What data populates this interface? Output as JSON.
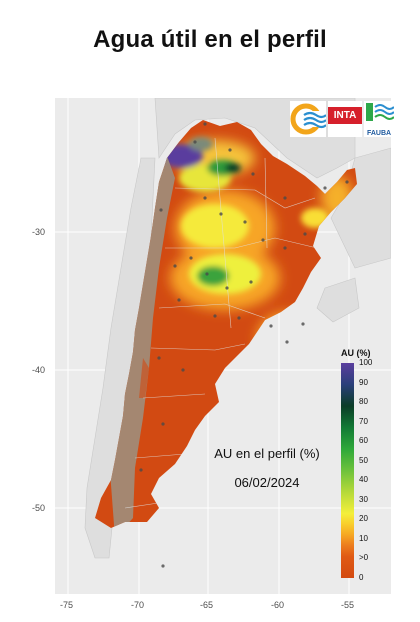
{
  "title": "Agua útil en el perfil",
  "map": {
    "caption_line1": "AU en el perfil (%)",
    "caption_line2": "06/02/2024",
    "y_ticks": [
      "-30",
      "-40",
      "-50"
    ],
    "x_ticks": [
      "-75",
      "-70",
      "-65",
      "-60",
      "-55"
    ]
  },
  "legend": {
    "title": "AU (%)",
    "labels": [
      "100",
      "90",
      "80",
      "70",
      "60",
      "50",
      "40",
      "30",
      "20",
      "10",
      ">0",
      "0"
    ]
  },
  "logos": {
    "inta": "INTA",
    "fauba": "FAUBA"
  },
  "colors": {
    "dry": "#d24a12",
    "low": "#f7a526",
    "mid": "#f5ea3a",
    "wet": "#3ba33d",
    "very_wet": "#5a3e9e",
    "no_data": "#a08c7a"
  }
}
